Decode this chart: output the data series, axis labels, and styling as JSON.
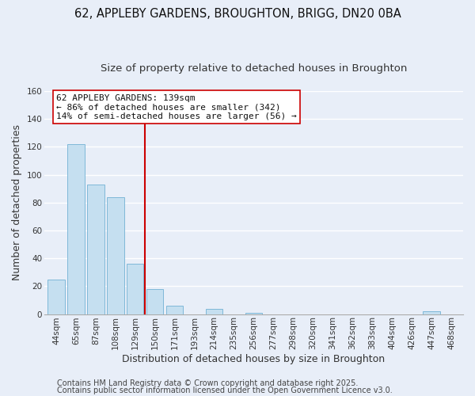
{
  "title": "62, APPLEBY GARDENS, BROUGHTON, BRIGG, DN20 0BA",
  "subtitle": "Size of property relative to detached houses in Broughton",
  "xlabel": "Distribution of detached houses by size in Broughton",
  "ylabel": "Number of detached properties",
  "bar_labels": [
    "44sqm",
    "65sqm",
    "87sqm",
    "108sqm",
    "129sqm",
    "150sqm",
    "171sqm",
    "193sqm",
    "214sqm",
    "235sqm",
    "256sqm",
    "277sqm",
    "298sqm",
    "320sqm",
    "341sqm",
    "362sqm",
    "383sqm",
    "404sqm",
    "426sqm",
    "447sqm",
    "468sqm"
  ],
  "bar_values": [
    25,
    122,
    93,
    84,
    36,
    18,
    6,
    0,
    4,
    0,
    1,
    0,
    0,
    0,
    0,
    0,
    0,
    0,
    0,
    2,
    0
  ],
  "bar_color": "#c5dff0",
  "bar_edge_color": "#7fb8d8",
  "vline_x": 4.5,
  "vline_color": "#cc0000",
  "ylim": [
    0,
    160
  ],
  "yticks": [
    0,
    20,
    40,
    60,
    80,
    100,
    120,
    140,
    160
  ],
  "annotation_title": "62 APPLEBY GARDENS: 139sqm",
  "annotation_line1": "← 86% of detached houses are smaller (342)",
  "annotation_line2": "14% of semi-detached houses are larger (56) →",
  "footer_line1": "Contains HM Land Registry data © Crown copyright and database right 2025.",
  "footer_line2": "Contains public sector information licensed under the Open Government Licence v3.0.",
  "background_color": "#e8eef8",
  "grid_color": "#ffffff",
  "title_fontsize": 10.5,
  "subtitle_fontsize": 9.5,
  "axis_label_fontsize": 9,
  "tick_fontsize": 7.5,
  "footer_fontsize": 7,
  "annotation_fontsize": 8
}
